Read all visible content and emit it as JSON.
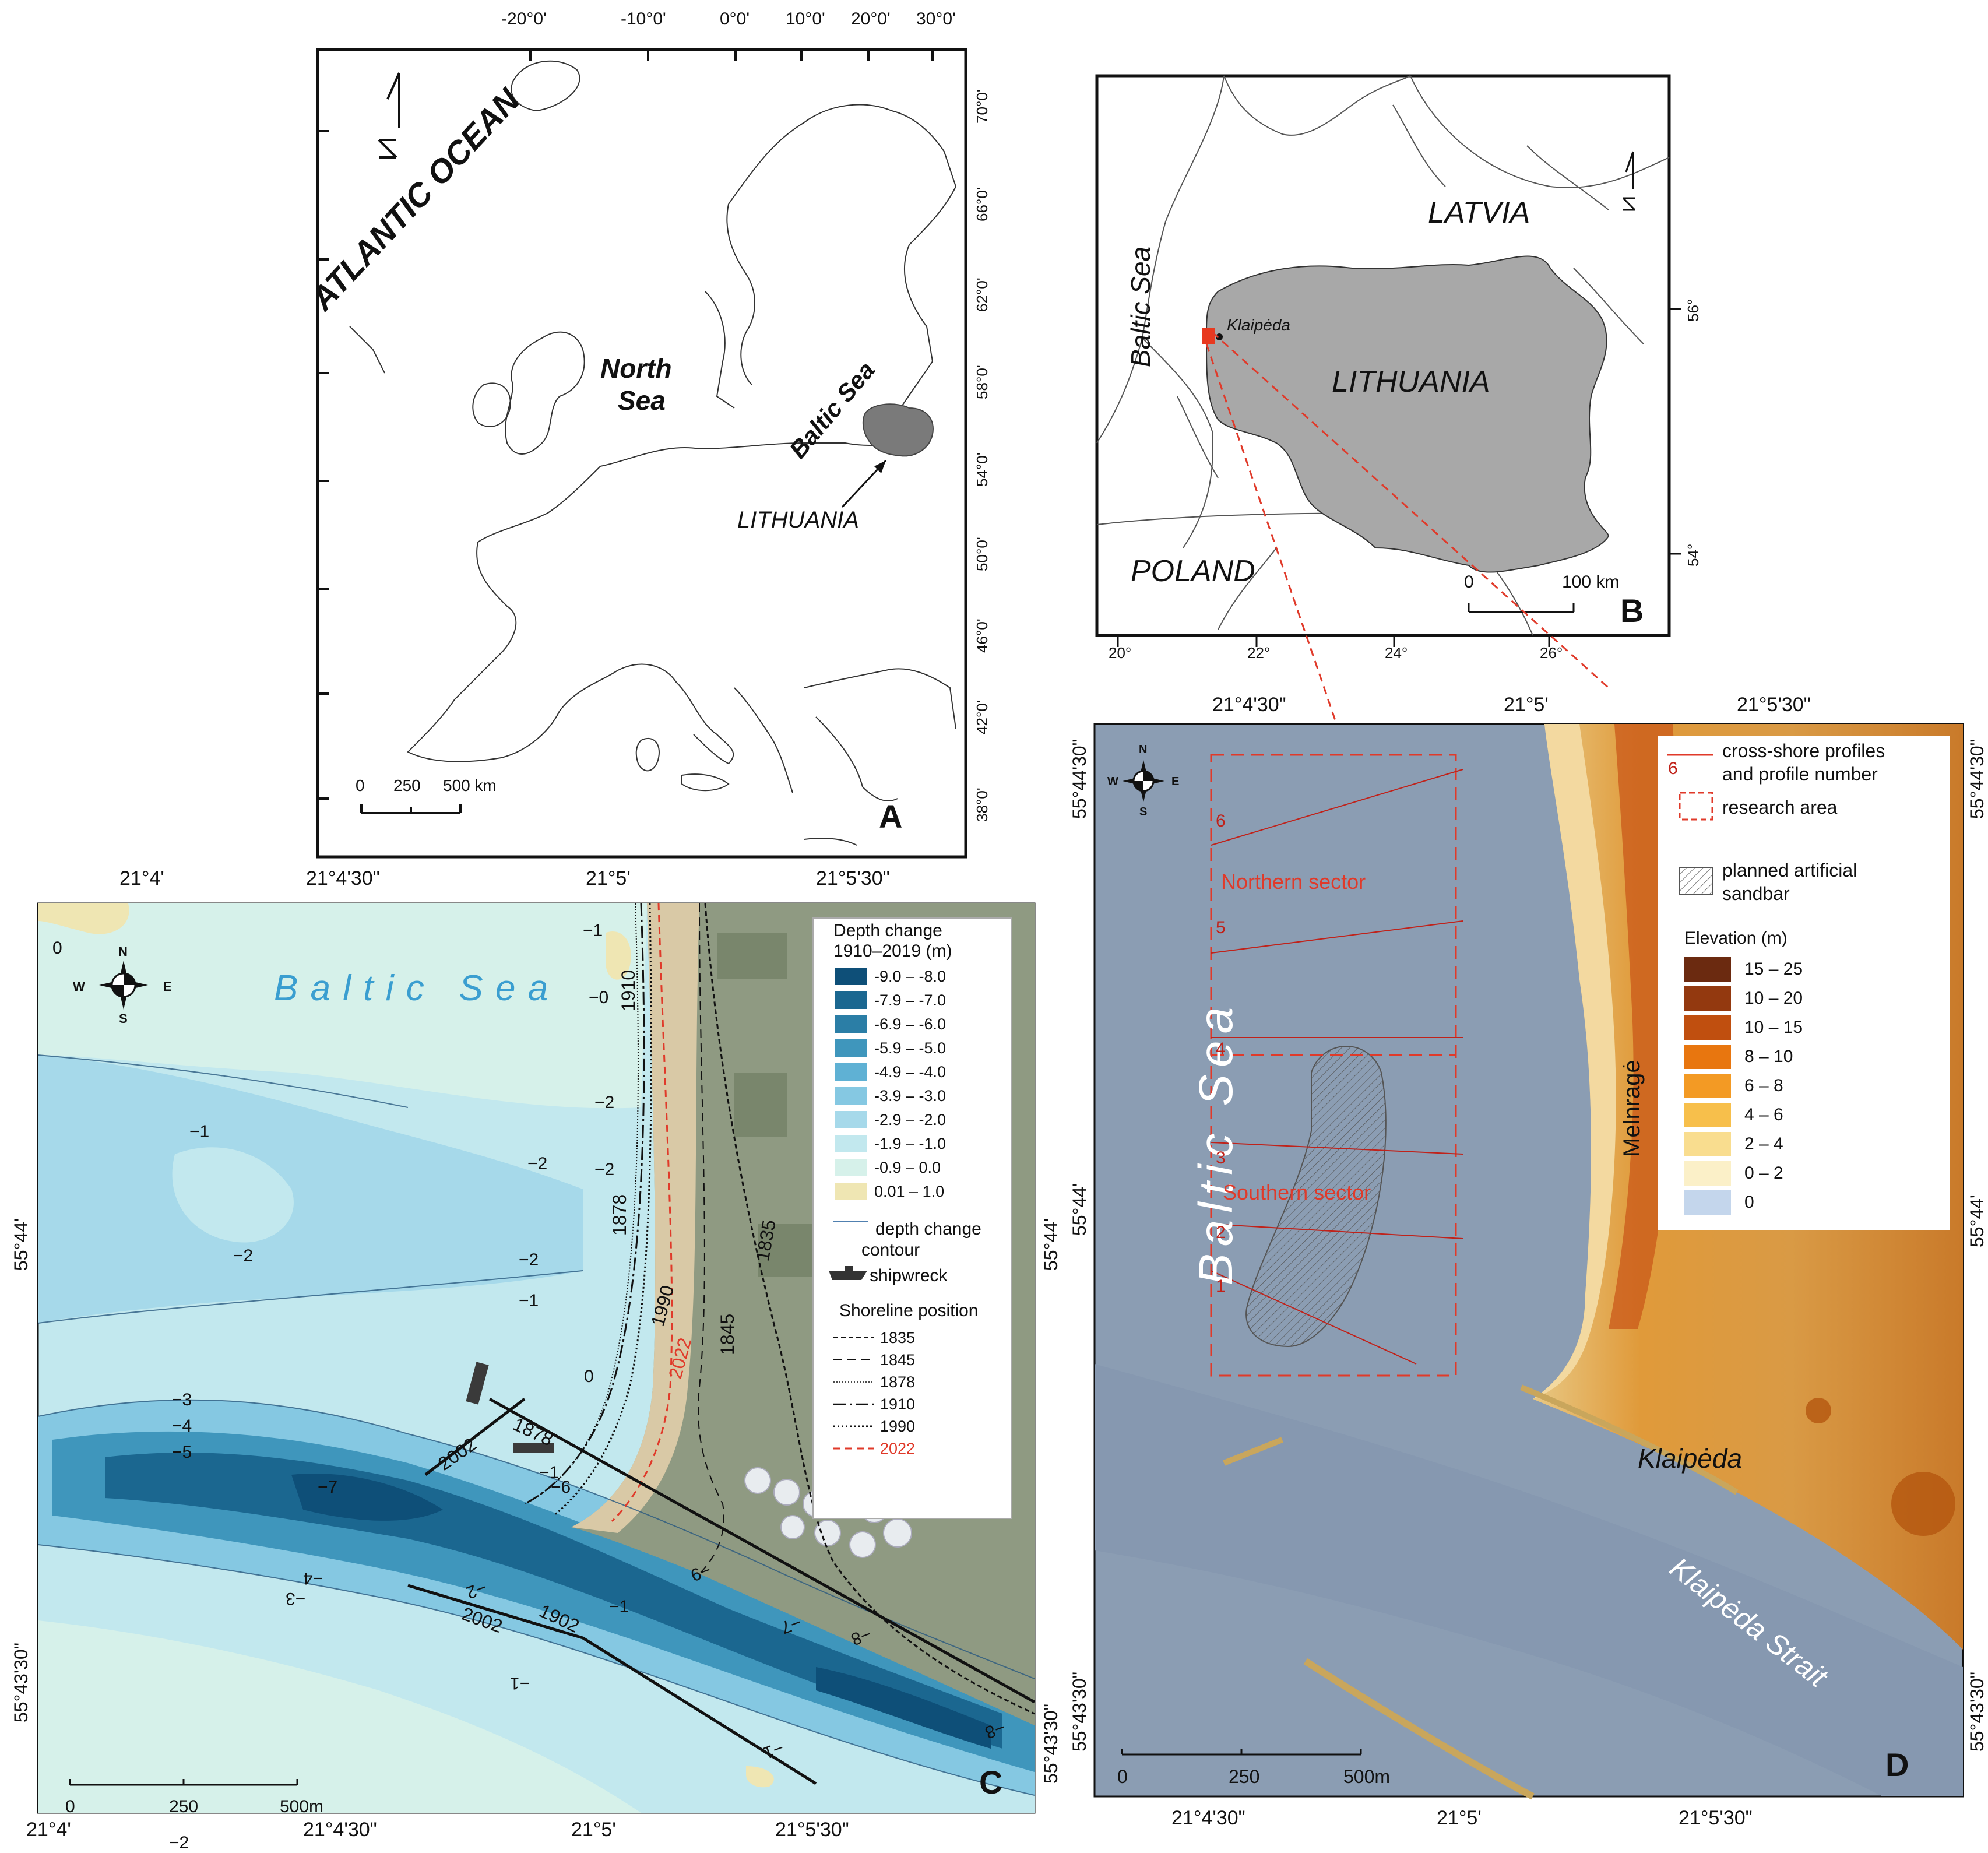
{
  "panelA": {
    "letter": "A",
    "top_ticks": [
      "-20°0'",
      "-10°0'",
      "0°0'",
      "10°0'",
      "20°0'",
      "30°0'"
    ],
    "right_ticks": [
      "70°0'",
      "66°0'",
      "62°0'",
      "58°0'",
      "54°0'",
      "50°0'",
      "46°0'",
      "42°0'",
      "38°0'"
    ],
    "labels": {
      "ocean": "ATLANTIC OCEAN",
      "north": "North",
      "sea": "Sea",
      "baltic": "Baltic Sea",
      "lithuania": "LITHUANIA"
    },
    "scale": {
      "zero": "0",
      "mid": "250",
      "end": "500 km"
    }
  },
  "panelB": {
    "letter": "B",
    "bottom_ticks": [
      "20°",
      "22°",
      "24°",
      "26°"
    ],
    "right_ticks": [
      "56°",
      "54°"
    ],
    "labels": {
      "latvia": "LATVIA",
      "lithuania": "LITHUANIA",
      "poland": "POLAND",
      "baltic": "Baltic Sea",
      "city": "Klaipėda"
    },
    "scale": {
      "zero": "0",
      "end": "100 km"
    }
  },
  "panelC": {
    "letter": "C",
    "top_ticks": [
      "21°4'",
      "21°4'30\"",
      "21°5'",
      "21°5'30\""
    ],
    "bottom_ticks": [
      "21°4'",
      "21°4'30\"",
      "21°5'",
      "21°5'30\""
    ],
    "left_ticks": [
      "55°44'",
      "55°43'30\""
    ],
    "right_ticks": [
      "55°44'",
      "55°43'30\""
    ],
    "sea_label": "B a l t i c   S e a",
    "compass": {
      "n": "N",
      "s": "S",
      "e": "E",
      "w": "W"
    },
    "scale": {
      "zero": "0",
      "mid": "250",
      "end": "500m"
    },
    "contour_labels": [
      "0",
      "−1",
      "−1",
      "−1",
      "−2",
      "−2",
      "−2",
      "−3",
      "−4",
      "−5",
      "−7",
      "−6",
      "−2",
      "−3",
      "−4",
      "−2",
      "−1",
      "−1",
      "−9",
      "−7",
      "−8",
      "−8",
      "−2",
      "−1",
      "−1",
      "−0",
      "−2",
      "0"
    ],
    "shoreline_labels": [
      "1910",
      "1878",
      "1990",
      "2022",
      "1845",
      "1835",
      "2002",
      "1878",
      "2002",
      "1902"
    ],
    "legend": {
      "title1": "Depth change",
      "title2": "1910–2019 (m)",
      "classes": [
        {
          "label": "-9.0 – -8.0",
          "color": "#0e4f78"
        },
        {
          "label": "-7.9 – -7.0",
          "color": "#1b6790"
        },
        {
          "label": "-6.9 – -6.0",
          "color": "#2b7ea6"
        },
        {
          "label": "-5.9 – -5.0",
          "color": "#3f96bc"
        },
        {
          "label": "-4.9 – -4.0",
          "color": "#5fb1d4"
        },
        {
          "label": "-3.9 – -3.0",
          "color": "#85c8e2"
        },
        {
          "label": "-2.9 – -2.0",
          "color": "#a6d9ea"
        },
        {
          "label": "-1.9 – -1.0",
          "color": "#c2e8ee"
        },
        {
          "label": "-0.9 – 0.0",
          "color": "#d6f1ea"
        },
        {
          "label": "0.01 – 1.0",
          "color": "#efe6b3"
        }
      ],
      "contour1": "depth change",
      "contour2": "contour",
      "shipwreck": "shipwreck",
      "shore_title": "Shoreline position",
      "shorelines": [
        {
          "year": "1835",
          "dash": "8,5",
          "color": "#111111",
          "w": 2
        },
        {
          "year": "1845",
          "dash": "14,10",
          "color": "#111111",
          "w": 2
        },
        {
          "year": "1878",
          "dash": "2,3",
          "color": "#111111",
          "w": 1.5
        },
        {
          "year": "1910",
          "dash": "22,6,4,6",
          "color": "#111111",
          "w": 2.5
        },
        {
          "year": "1990",
          "dash": "3,4",
          "color": "#111111",
          "w": 3
        },
        {
          "year": "2022",
          "dash": "12,8",
          "color": "#e03a2a",
          "w": 3
        }
      ]
    }
  },
  "panelD": {
    "letter": "D",
    "top_ticks": [
      "21°4'30\"",
      "21°5'",
      "21°5'30\""
    ],
    "bottom_ticks": [
      "21°4'30\"",
      "21°5'",
      "21°5'30\""
    ],
    "left_ticks": [
      "55°44'30\"",
      "55°44'",
      "55°43'30\""
    ],
    "right_ticks": [
      "55°44'30\"",
      "55°44'",
      "55°43'30\""
    ],
    "sea_label": "Baltic Sea",
    "strait_label": "Klaipėda Strait",
    "city_label": "Klaipėda",
    "village_label": "Melnragė",
    "northern": "Northern sector",
    "southern": "Southern sector",
    "profiles": [
      "6",
      "5",
      "4",
      "3",
      "2",
      "1"
    ],
    "compass": {
      "n": "N",
      "s": "S",
      "e": "E",
      "w": "W"
    },
    "scale": {
      "zero": "0",
      "mid": "250",
      "end": "500m"
    },
    "legend": {
      "profile_num": "6",
      "profiles1": "cross-shore profiles",
      "profiles2": "and profile number",
      "research": "research area",
      "sandbar1": "planned artificial",
      "sandbar2": "sandbar",
      "elev_title": "Elevation (m)",
      "classes": [
        {
          "label": "15 – 25",
          "color": "#6b2a10"
        },
        {
          "label": "10 – 20",
          "color": "#93390f"
        },
        {
          "label": "10 – 15",
          "color": "#c04f0f"
        },
        {
          "label": "8 – 10",
          "color": "#e8760f"
        },
        {
          "label": "6 – 8",
          "color": "#f39a24"
        },
        {
          "label": "4 – 6",
          "color": "#f7bf4b"
        },
        {
          "label": "2 – 4",
          "color": "#f9dd8f"
        },
        {
          "label": "0 – 2",
          "color": "#fbf0c8"
        },
        {
          "label": "0",
          "color": "#c4d6ec"
        }
      ]
    }
  }
}
